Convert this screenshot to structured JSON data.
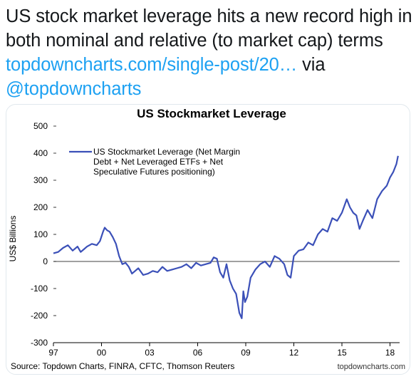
{
  "tweet": {
    "text_part1": "US stock market leverage hits a new record high in both nominal and relative (to market cap) terms ",
    "link1": "topdowncharts.com/single-post/20…",
    "text_part2": " via ",
    "link2": "@topdowncharts"
  },
  "chart_data": {
    "type": "line",
    "title": "US Stockmarket Leverage",
    "ylabel": "US$ Billions",
    "ylim": [
      -300,
      500
    ],
    "yticks": [
      500,
      400,
      300,
      200,
      100,
      0,
      -100,
      -200,
      -300
    ],
    "xlim": [
      1997.0,
      2018.6
    ],
    "xticks": [
      {
        "value": 1997,
        "label": "97"
      },
      {
        "value": 2000,
        "label": "00"
      },
      {
        "value": 2003,
        "label": "03"
      },
      {
        "value": 2006,
        "label": "06"
      },
      {
        "value": 2009,
        "label": "09"
      },
      {
        "value": 2012,
        "label": "12"
      },
      {
        "value": 2015,
        "label": "15"
      },
      {
        "value": 2018,
        "label": "18"
      }
    ],
    "legend": {
      "placement": "top-left",
      "lines": [
        "US Stockmarket Leverage (Net Margin",
        "Debt + Net Leveraged ETFs + Net",
        "Speculative Futures positioning)"
      ]
    },
    "source": "Source: Topdown Charts, FINRA, CFTC, Thomson Reuters",
    "watermark": "topdowncharts.com",
    "line_color": "#3b50b8",
    "series": [
      {
        "x": [
          1997.0,
          1997.3,
          1997.6,
          1997.9,
          1998.2,
          1998.5,
          1998.7,
          1998.9,
          1999.1,
          1999.4,
          1999.7,
          1999.9,
          2000.1,
          2000.2,
          2000.35,
          2000.5,
          2000.7,
          2000.9,
          2001.1,
          2001.3,
          2001.5,
          2001.7,
          2001.9,
          2002.1,
          2002.3,
          2002.6,
          2002.9,
          2003.2,
          2003.5,
          2003.8,
          2004.1,
          2004.4,
          2004.7,
          2005.0,
          2005.3,
          2005.6,
          2005.9,
          2006.2,
          2006.5,
          2006.8,
          2007.0,
          2007.2,
          2007.4,
          2007.6,
          2007.8,
          2008.0,
          2008.2,
          2008.4,
          2008.6,
          2008.75,
          2008.85,
          2008.95,
          2009.1,
          2009.3,
          2009.6,
          2009.9,
          2010.2,
          2010.5,
          2010.8,
          2011.1,
          2011.4,
          2011.6,
          2011.8,
          2012.0,
          2012.3,
          2012.6,
          2012.9,
          2013.2,
          2013.5,
          2013.8,
          2014.1,
          2014.4,
          2014.7,
          2015.0,
          2015.3,
          2015.5,
          2015.7,
          2015.9,
          2016.1,
          2016.3,
          2016.6,
          2016.9,
          2017.2,
          2017.5,
          2017.8,
          2018.0,
          2018.2,
          2018.4,
          2018.5
        ],
        "y": [
          30,
          35,
          50,
          60,
          40,
          55,
          35,
          45,
          55,
          65,
          60,
          75,
          110,
          125,
          115,
          110,
          90,
          65,
          20,
          -10,
          -5,
          -20,
          -45,
          -35,
          -25,
          -50,
          -45,
          -35,
          -40,
          -20,
          -35,
          -30,
          -25,
          -20,
          -10,
          -25,
          -5,
          -15,
          -10,
          -5,
          15,
          10,
          -40,
          -60,
          -10,
          -70,
          -100,
          -120,
          -190,
          -210,
          -110,
          -150,
          -130,
          -60,
          -30,
          -10,
          0,
          -20,
          20,
          10,
          -10,
          -50,
          -60,
          20,
          40,
          45,
          70,
          60,
          100,
          120,
          110,
          160,
          150,
          180,
          230,
          200,
          180,
          170,
          120,
          150,
          190,
          160,
          230,
          260,
          280,
          310,
          330,
          360,
          390
        ]
      }
    ]
  }
}
